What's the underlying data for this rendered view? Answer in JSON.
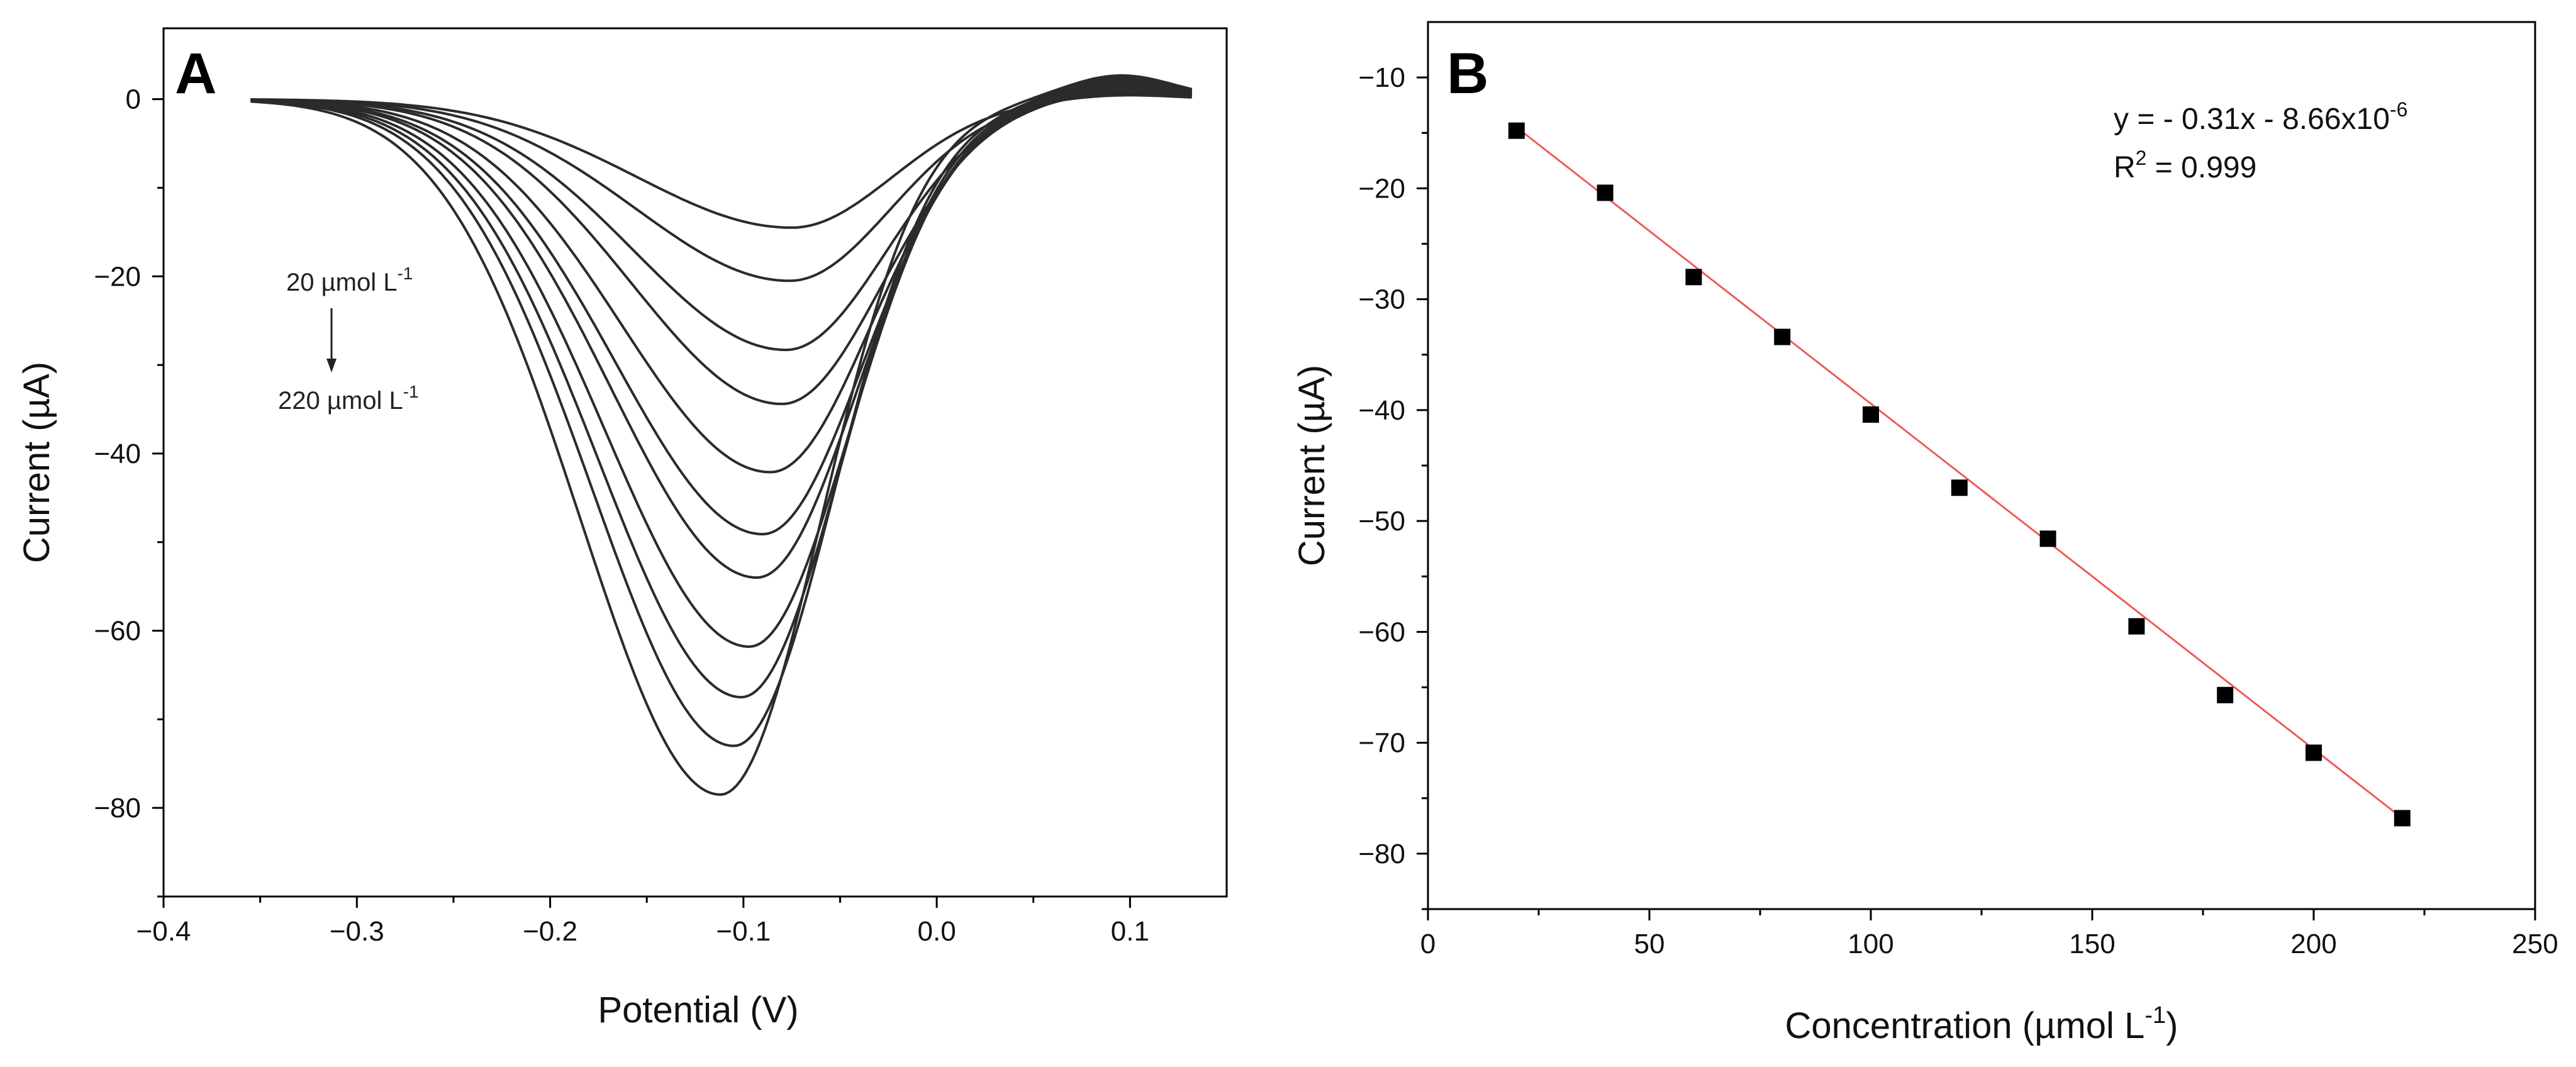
{
  "chart_data": [
    {
      "type": "line",
      "panel_label": "A",
      "xlabel": "Potential (V)",
      "ylabel": "Current (µA)",
      "xlim": [
        -0.4,
        0.15
      ],
      "ylim": [
        -90,
        8
      ],
      "xticks": [
        -0.4,
        -0.3,
        -0.2,
        -0.1,
        0.0,
        0.1
      ],
      "xtick_labels": [
        "−0.4",
        "−0.3",
        "−0.2",
        "−0.1",
        "0.0",
        "0.1"
      ],
      "yticks": [
        0,
        -20,
        -40,
        -60,
        -80
      ],
      "ytick_labels": [
        "0",
        "−20",
        "−40",
        "−60",
        "−80"
      ],
      "annotation_top": "20 µmol L",
      "annotation_top_sup": "-1",
      "annotation_bottom": "220 µmol L",
      "annotation_bottom_sup": "-1",
      "series_peaks": [
        {
          "peak_x": -0.075,
          "peak_y": -14.5
        },
        {
          "peak_x": -0.076,
          "peak_y": -20.5
        },
        {
          "peak_x": -0.078,
          "peak_y": -28.3
        },
        {
          "peak_x": -0.08,
          "peak_y": -34.4
        },
        {
          "peak_x": -0.086,
          "peak_y": -42.1
        },
        {
          "peak_x": -0.09,
          "peak_y": -49.1
        },
        {
          "peak_x": -0.093,
          "peak_y": -54.0
        },
        {
          "peak_x": -0.097,
          "peak_y": -61.8
        },
        {
          "peak_x": -0.101,
          "peak_y": -67.5
        },
        {
          "peak_x": -0.105,
          "peak_y": -73.0
        },
        {
          "peak_x": -0.112,
          "peak_y": -78.5
        }
      ]
    },
    {
      "type": "scatter",
      "panel_label": "B",
      "xlabel": "Concentration (µmol L",
      "xlabel_sup": "-1",
      "xlabel_end": ")",
      "ylabel": "Current (µA)",
      "xlim": [
        0,
        250
      ],
      "ylim": [
        -85,
        -5
      ],
      "xticks": [
        0,
        50,
        100,
        150,
        200,
        250
      ],
      "yticks": [
        -10,
        -20,
        -30,
        -40,
        -50,
        -60,
        -70,
        -80
      ],
      "equation": "y = - 0.31x - 8.66x10",
      "equation_sup": "-6",
      "r2_label": "R",
      "r2_sup": "2",
      "r2_value": " = 0.999",
      "fit_line": {
        "x": [
          20,
          220
        ],
        "y": [
          -14.5,
          -76.8
        ]
      },
      "x": [
        20,
        40,
        60,
        80,
        100,
        120,
        140,
        160,
        180,
        200,
        220
      ],
      "y": [
        -14.8,
        -20.4,
        -28.0,
        -33.4,
        -40.4,
        -47.0,
        -51.6,
        -59.5,
        -65.7,
        -70.9,
        -76.8
      ]
    }
  ]
}
